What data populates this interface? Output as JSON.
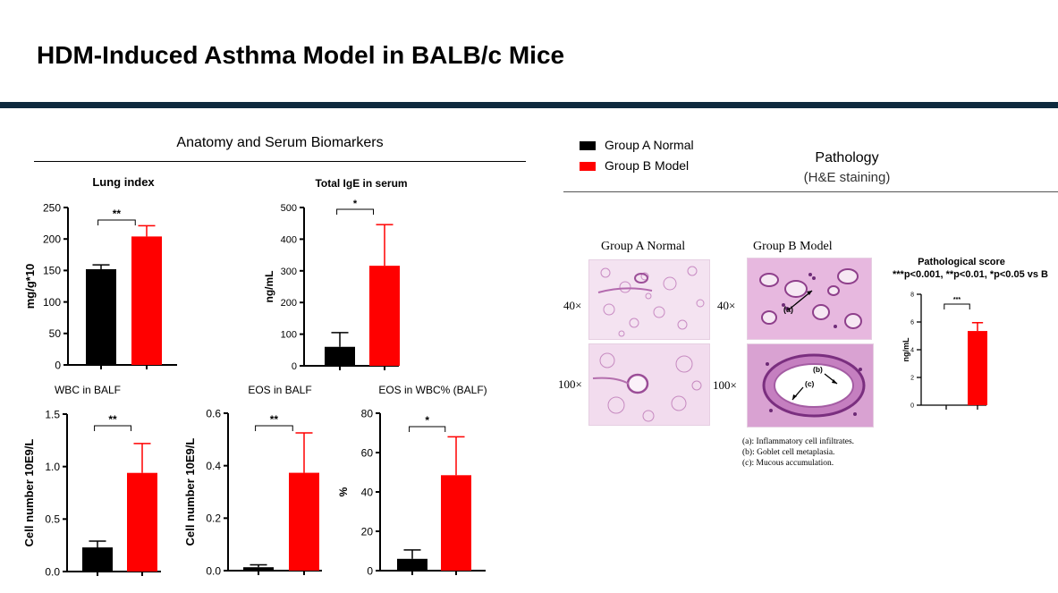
{
  "slide": {
    "title": "HDM-Induced Asthma Model in BALB/c Mice",
    "bar_color": "#0e2a3e"
  },
  "sections": {
    "left_title": "Anatomy and Serum Biomarkers",
    "right_title": "Pathology",
    "right_subtitle": "(H&E staining)"
  },
  "legend": {
    "items": [
      {
        "label": "Group A Normal",
        "color": "#000000"
      },
      {
        "label": "Group B Model",
        "color": "#ff0000"
      }
    ]
  },
  "histology": {
    "col_a": "Group A Normal",
    "col_b": "Group B Model",
    "row_40": "40×",
    "row_100": "100×",
    "annotations": [
      "(a)",
      "(b)",
      "(c)"
    ],
    "footnotes": [
      "(a): Inflammatory cell infiltrates.",
      "(b): Goblet cell metaplasia.",
      "(c): Mucous accumulation."
    ]
  },
  "chart_data": [
    {
      "type": "bar",
      "title": "Lung index",
      "ylabel": "mg/g*10",
      "categories": [
        "Group A Normal",
        "Group B Model"
      ],
      "values": [
        152,
        204
      ],
      "errors": [
        7,
        17
      ],
      "ylim": [
        0,
        250
      ],
      "yticks": [
        "0",
        "50",
        "100",
        "150",
        "200",
        "250"
      ],
      "significance": "**"
    },
    {
      "type": "bar",
      "title": "Total IgE in serum",
      "ylabel": "ng/mL",
      "categories": [
        "Group A Normal",
        "Group B Model"
      ],
      "values": [
        60,
        316
      ],
      "errors": [
        45,
        130
      ],
      "ylim": [
        0,
        500
      ],
      "yticks": [
        "0",
        "100",
        "200",
        "300",
        "400",
        "500"
      ],
      "significance": "*"
    },
    {
      "type": "bar",
      "title": "WBC in BALF",
      "ylabel": "Cell number 10E9/L",
      "categories": [
        "Group A Normal",
        "Group B Model"
      ],
      "values": [
        0.23,
        0.94
      ],
      "errors": [
        0.06,
        0.28
      ],
      "ylim": [
        0,
        1.5
      ],
      "yticks": [
        "0.0",
        "0.5",
        "1.0",
        "1.5"
      ],
      "significance": "**"
    },
    {
      "type": "bar",
      "title": "EOS in BALF",
      "ylabel": "Cell number 10E9/L",
      "categories": [
        "Group A Normal",
        "Group B Model"
      ],
      "values": [
        0.013,
        0.373
      ],
      "errors": [
        0.009,
        0.152
      ],
      "ylim": [
        0,
        0.6
      ],
      "yticks": [
        "0.0",
        "0.2",
        "0.4",
        "0.6"
      ],
      "significance": "**"
    },
    {
      "type": "bar",
      "title": "EOS in WBC% (BALF)",
      "ylabel": "%",
      "categories": [
        "Group A Normal",
        "Group B Model"
      ],
      "values": [
        6,
        48.5
      ],
      "errors": [
        4.5,
        19.5
      ],
      "ylim": [
        0,
        80
      ],
      "yticks": [
        "0",
        "20",
        "40",
        "60",
        "80"
      ],
      "significance": "*"
    },
    {
      "type": "bar",
      "title": "Pathological score",
      "subtitle": "***p<0.001, **p<0.01, *p<0.05 vs B",
      "ylabel": "ng/mL",
      "categories": [
        "Group A Normal",
        "Group B Model"
      ],
      "values": [
        0,
        5.35
      ],
      "errors": [
        0,
        0.6
      ],
      "ylim": [
        0,
        8
      ],
      "yticks": [
        "0",
        "2",
        "4",
        "6",
        "8"
      ],
      "significance": "***"
    }
  ]
}
